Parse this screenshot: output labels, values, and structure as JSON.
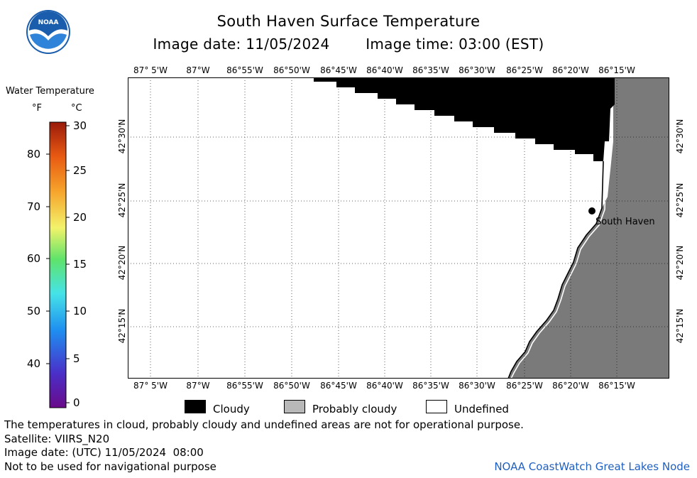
{
  "header": {
    "title": "South Haven Surface Temperature",
    "image_date": "Image date: 11/05/2024",
    "image_time": "Image time: 03:00 (EST)"
  },
  "logo": {
    "text": "NOAA",
    "icon": "noaa-logo-icon"
  },
  "map": {
    "longitude_labels": [
      "87° 5'W",
      "87°W",
      "86°55'W",
      "86°50'W",
      "86°45'W",
      "86°40'W",
      "86°35'W",
      "86°30'W",
      "86°25'W",
      "86°20'W",
      "86°15'W"
    ],
    "latitude_labels": [
      "42°30'N",
      "42°25'N",
      "42°20'N",
      "42°15'N"
    ],
    "place_label": "South Haven",
    "colors": {
      "cloudy": "#000000",
      "probably_cloudy": "#7a7a7a",
      "undefined": "#ffffff",
      "coastline": "#000000"
    }
  },
  "scale": {
    "title": "Water Temperature",
    "unit_f": "°F",
    "unit_c": "°C",
    "f_ticks": [
      "80",
      "70",
      "60",
      "50",
      "40"
    ],
    "c_ticks": [
      "30",
      "25",
      "20",
      "15",
      "10",
      "5",
      "0"
    ]
  },
  "legend": {
    "cloudy": "Cloudy",
    "probably_cloudy": "Probably cloudy",
    "undefined": "Undefined"
  },
  "footer": {
    "disclaimer": "The temperatures in cloud, probably cloudy and undefined areas are not for operational purpose.",
    "satellite": "Satellite: VIIRS_N20",
    "utc_date": "Image date: (UTC) 11/05/2024  08:00",
    "navigation": "Not to be used for navigational purpose",
    "credit": "NOAA CoastWatch Great Lakes Node"
  }
}
